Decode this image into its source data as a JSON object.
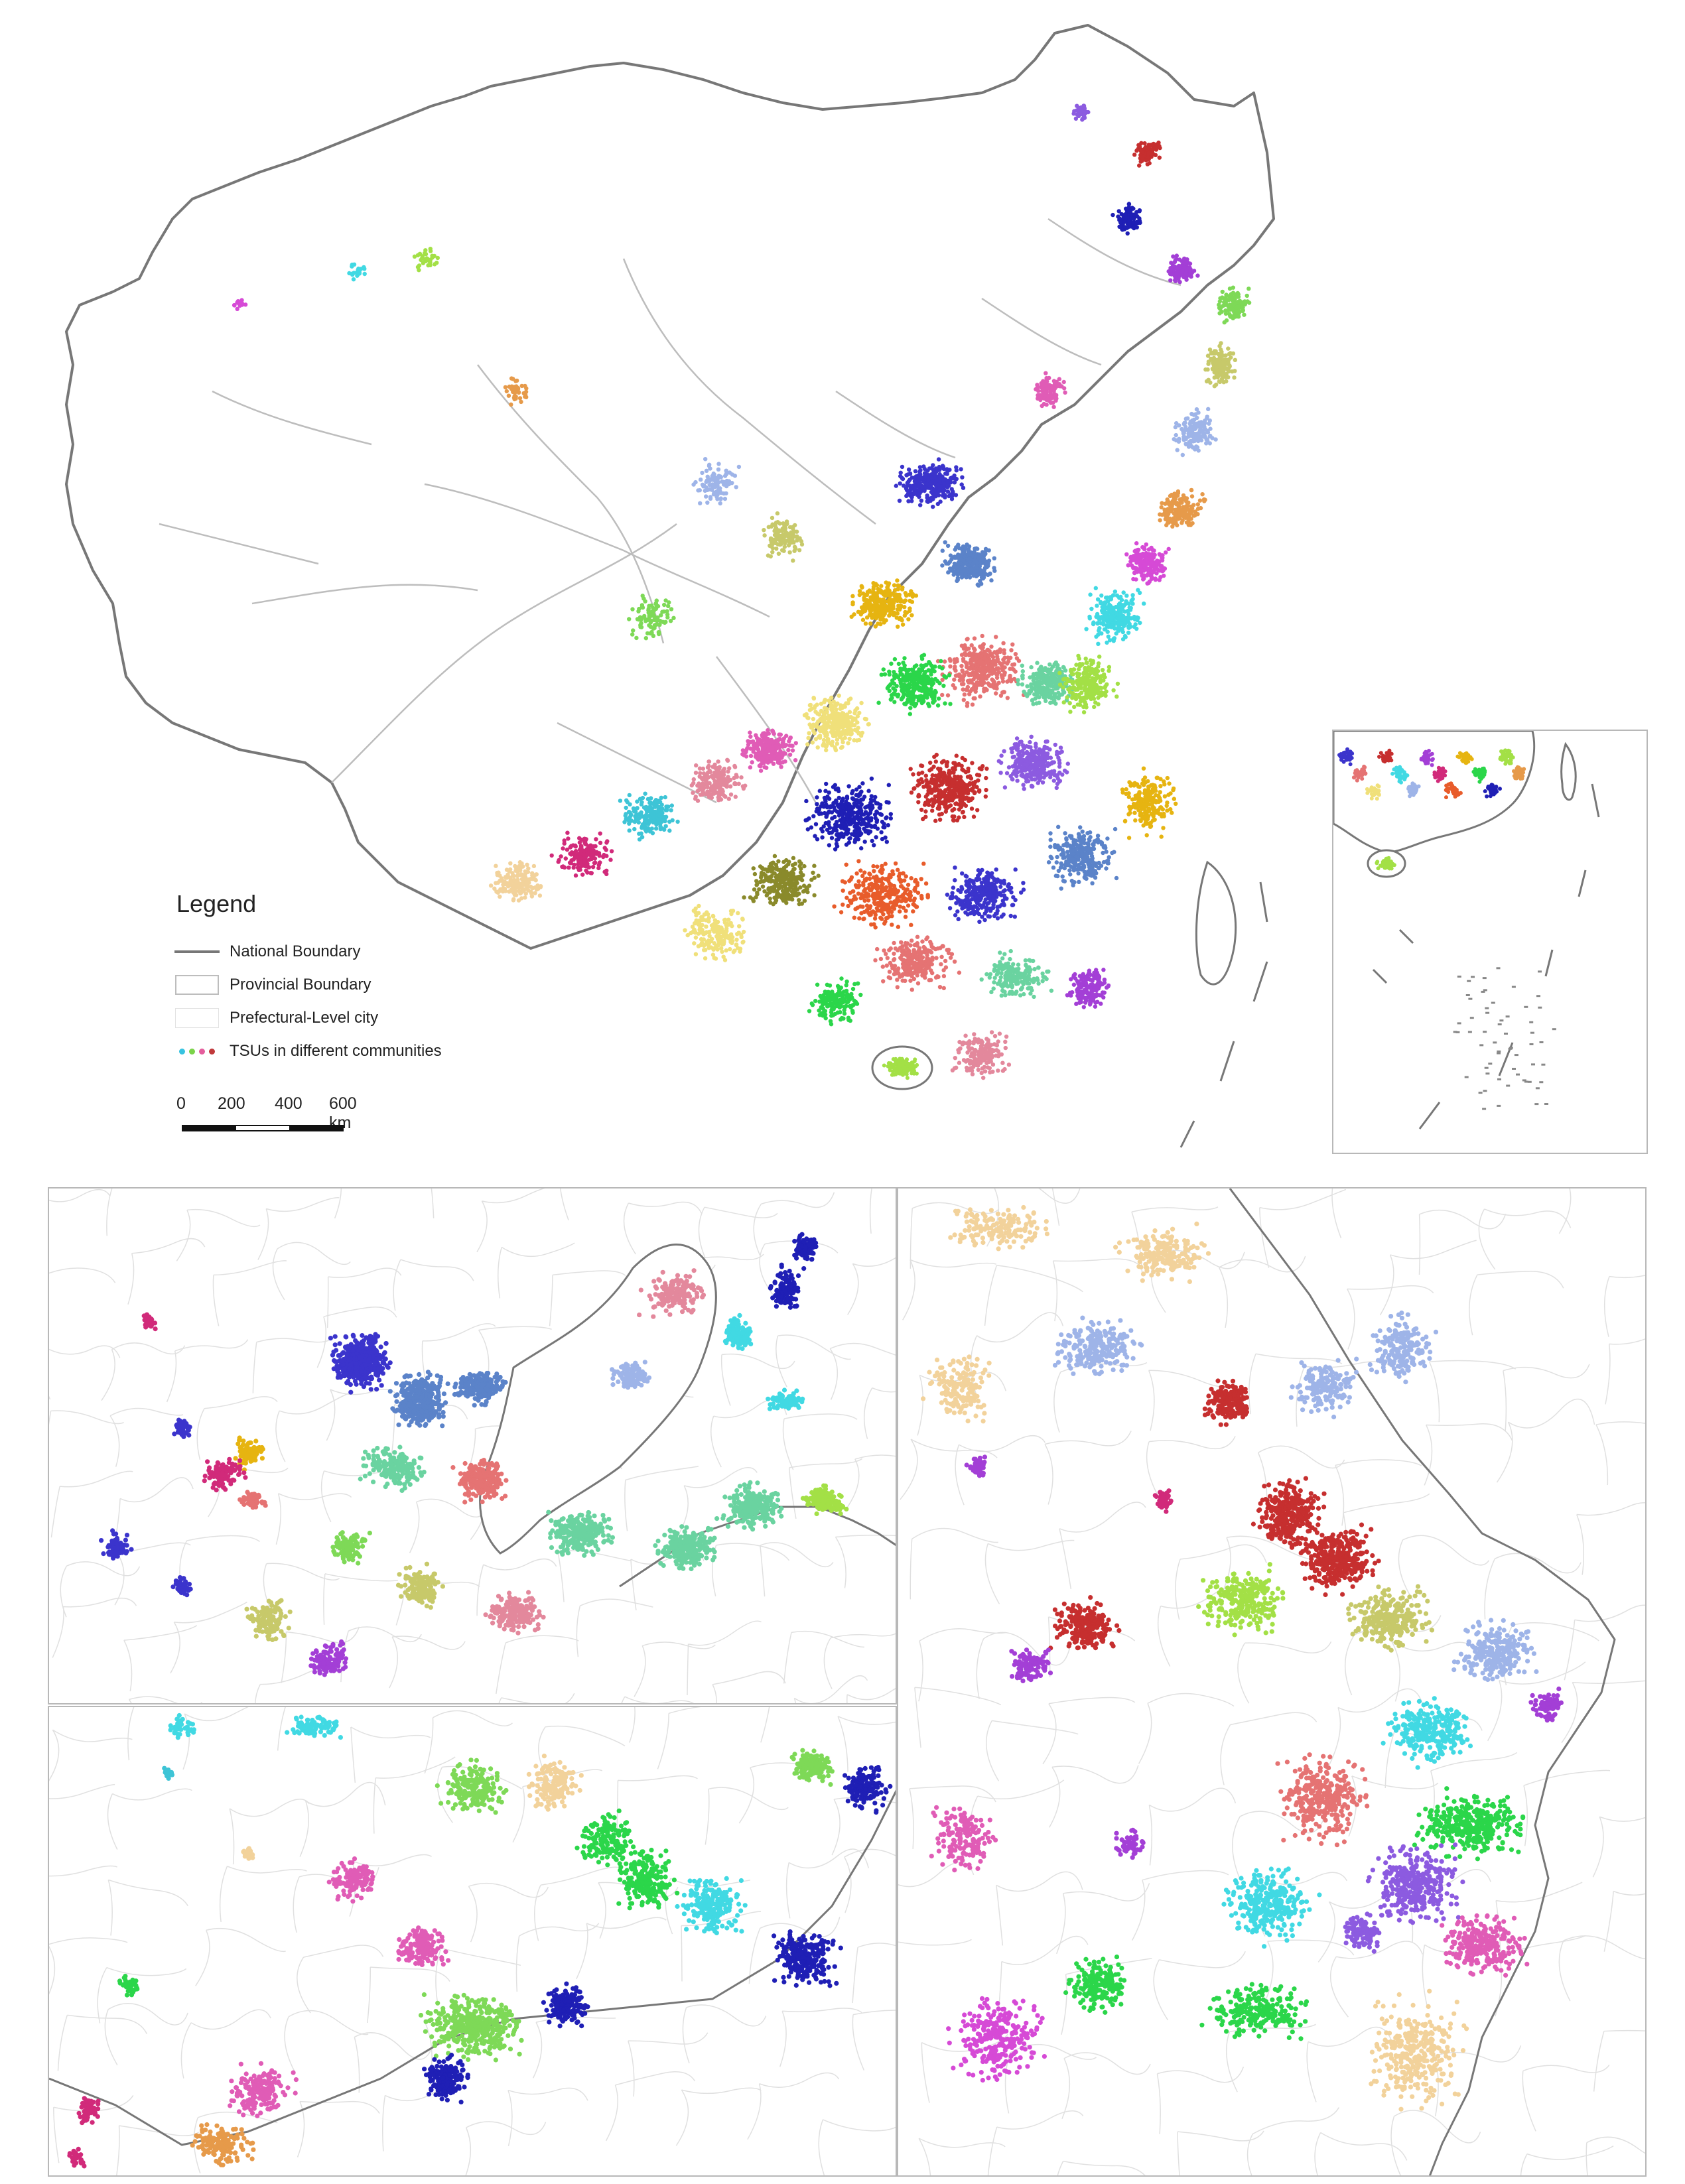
{
  "legend": {
    "title": "Legend",
    "items": {
      "national": "National Boundary",
      "provincial": "Provincial Boundary",
      "prefectural": "Prefectural-Level city",
      "tsu": "TSUs in different communities"
    },
    "dot_colors": [
      "#37c3e0",
      "#7bd34a",
      "#e45d9c",
      "#c0393b"
    ]
  },
  "scale": {
    "labels": [
      "0",
      "200",
      "400",
      "600 km"
    ]
  },
  "colors": {
    "national_boundary": "#777777",
    "provincial_boundary": "#bdbdbd",
    "prefectural_boundary": "#e0e0e0",
    "panel_border": "#b8b8b8",
    "community_palette": [
      "#3b34cc",
      "#5b83c9",
      "#e6b411",
      "#e57373",
      "#6ad3a0",
      "#2bd64a",
      "#f0e07a",
      "#e05cb6",
      "#1f1fb5",
      "#c62f2f",
      "#8c5be0",
      "#a3e046",
      "#41d9e3",
      "#d64ad6",
      "#e69a4a",
      "#9eb4e8",
      "#c7c96a",
      "#7ed957",
      "#a33fd6",
      "#e3889c",
      "#3ec4d6",
      "#d12a7a",
      "#f2d29b",
      "#8a8a2b",
      "#e85c2b"
    ]
  }
}
